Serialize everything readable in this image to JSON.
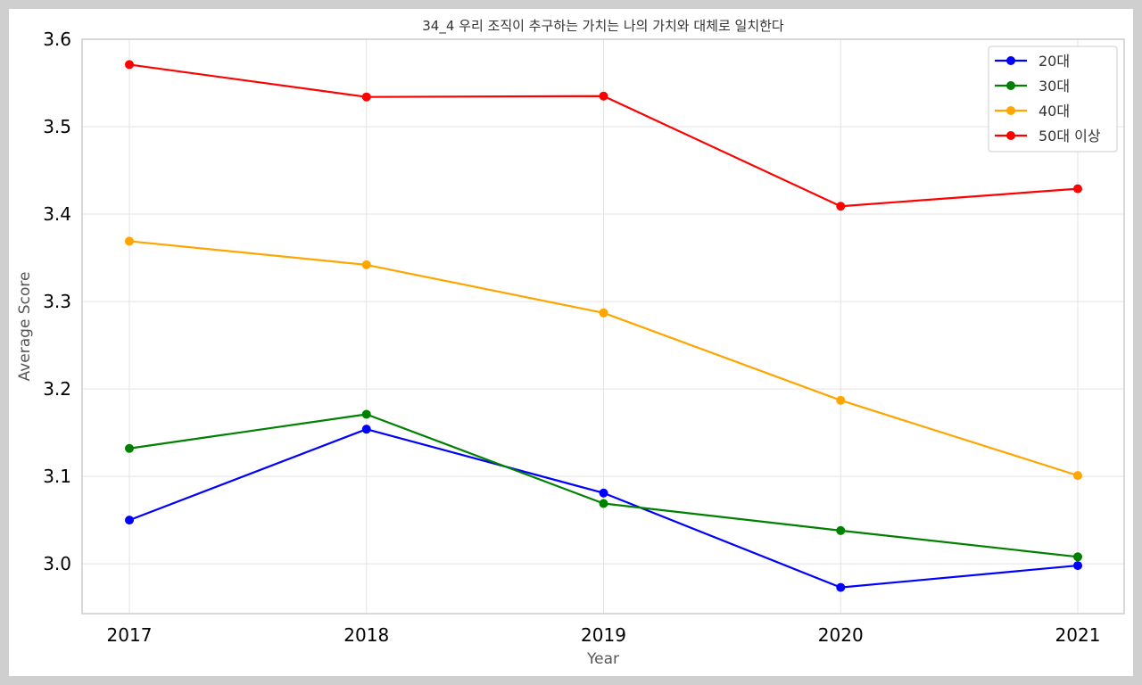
{
  "chart_data": {
    "type": "line",
    "title": "34_4 우리 조직이 추구하는 가치는 나의 가치와 대체로 일치한다",
    "xlabel": "Year",
    "ylabel": "Average Score",
    "x": [
      "2017",
      "2018",
      "2019",
      "2020",
      "2021"
    ],
    "yticks": [
      "3.0",
      "3.1",
      "3.2",
      "3.3",
      "3.4",
      "3.5",
      "3.6"
    ],
    "ylim": [
      2.943,
      3.6
    ],
    "grid": true,
    "legend_position": "top-right",
    "series": [
      {
        "name": "20대",
        "color": "#0000ff",
        "values": [
          3.05,
          3.154,
          3.081,
          2.973,
          2.998
        ]
      },
      {
        "name": "30대",
        "color": "#008000",
        "values": [
          3.132,
          3.171,
          3.069,
          3.038,
          3.008
        ]
      },
      {
        "name": "40대",
        "color": "#ffa500",
        "values": [
          3.369,
          3.342,
          3.287,
          3.187,
          3.101
        ]
      },
      {
        "name": "50대 이상",
        "color": "#ff0000",
        "values": [
          3.571,
          3.534,
          3.535,
          3.409,
          3.429
        ]
      }
    ]
  }
}
